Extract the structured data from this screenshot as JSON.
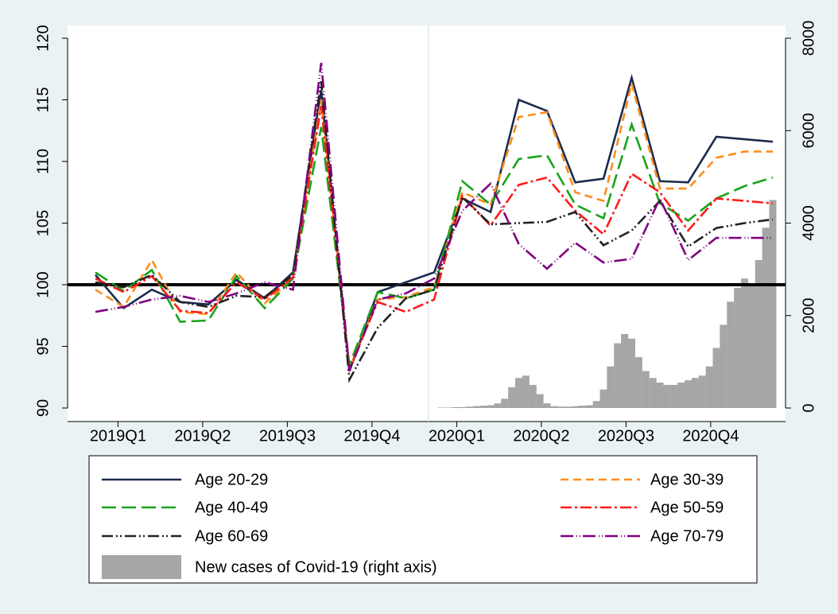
{
  "chart_data": {
    "type": "line",
    "x": [
      0,
      1,
      2,
      3,
      4,
      5,
      6,
      7,
      8,
      9,
      10,
      11,
      12,
      13,
      14,
      15,
      16,
      17,
      18,
      19,
      20,
      21,
      22,
      23,
      24
    ],
    "xlim": [
      -1,
      25.4
    ],
    "xticks": [
      {
        "value": 0.8,
        "label": "2019Q1"
      },
      {
        "value": 3.8,
        "label": "2019Q2"
      },
      {
        "value": 6.8,
        "label": "2019Q3"
      },
      {
        "value": 9.8,
        "label": "2019Q4"
      },
      {
        "value": 12.8,
        "label": "2020Q1"
      },
      {
        "value": 15.8,
        "label": "2020Q2"
      },
      {
        "value": 18.8,
        "label": "2020Q3"
      },
      {
        "value": 21.8,
        "label": "2020Q4"
      }
    ],
    "ylim": [
      90,
      120
    ],
    "yticks": [
      90,
      95,
      100,
      105,
      110,
      115,
      120
    ],
    "y2lim": [
      0,
      8000
    ],
    "y2ticks": [
      0,
      2000,
      4000,
      6000,
      8000
    ],
    "yline": 100,
    "xline": 11.8,
    "legend": "bottom",
    "series": [
      {
        "name": "Age 20-29",
        "color": "#1a2b4c",
        "dash": "none",
        "values": [
          100.8,
          98.1,
          99.6,
          98.6,
          98.4,
          100.4,
          98.9,
          101,
          115.8,
          93,
          99.4,
          100.2,
          101,
          107,
          105.9,
          115,
          114.1,
          108.3,
          108.6,
          116.8,
          108.4,
          108.3,
          112,
          111.8,
          111.6
        ]
      },
      {
        "name": "Age 30-39",
        "color": "#ff8c1a",
        "dash": "10,6",
        "values": [
          99.6,
          98.2,
          102,
          97.8,
          97.6,
          101,
          98.5,
          100.5,
          115,
          93.2,
          98.8,
          99,
          99.8,
          107.5,
          106.5,
          113.6,
          114,
          107.5,
          106.8,
          116.3,
          107.8,
          107.8,
          110.3,
          110.8,
          110.8
        ]
      },
      {
        "name": "Age 40-49",
        "color": "#1aa31a",
        "dash": "18,7",
        "values": [
          101,
          99.5,
          101.2,
          97,
          97.1,
          100.7,
          98.1,
          100.5,
          112.8,
          93.5,
          99.4,
          98.9,
          99.6,
          108.4,
          106.5,
          110.2,
          110.5,
          106.5,
          105.4,
          113,
          106.6,
          105.2,
          107,
          108,
          108.7
        ]
      },
      {
        "name": "Age 50-59",
        "color": "#ff1a1a",
        "dash": "14,4,3,4",
        "values": [
          100.5,
          99.4,
          100.7,
          97.9,
          97.7,
          100.2,
          98.8,
          100.6,
          114.5,
          93.2,
          98.6,
          97.8,
          98.8,
          107.2,
          104.8,
          108.1,
          108.7,
          106,
          104.1,
          109,
          107.5,
          104.4,
          107,
          106.8,
          106.6
        ]
      },
      {
        "name": "Age 60-69",
        "color": "#222222",
        "dash": "14,4,2,3,2,4",
        "values": [
          100.2,
          99.8,
          100.8,
          98.6,
          98.2,
          99.1,
          99,
          100.8,
          116.5,
          92.3,
          96.5,
          98.9,
          99.6,
          107.1,
          104.9,
          105,
          105.1,
          105.9,
          103.2,
          104.4,
          106.8,
          103.1,
          104.6,
          105,
          105.3
        ]
      },
      {
        "name": "Age 70-79",
        "color": "#800080",
        "dash": "16,4,1,3,1,3",
        "values": [
          97.8,
          98.2,
          98.8,
          99.1,
          98.6,
          99.3,
          100.2,
          99.6,
          118,
          93,
          98.8,
          99.3,
          100.5,
          106,
          108.2,
          103.3,
          101.3,
          103.4,
          101.8,
          102.1,
          107,
          102,
          103.8,
          103.8,
          103.8
        ]
      },
      {
        "name": "New cases of Covid-19 (right axis)",
        "type": "bar",
        "axis": "y2",
        "color": "#a6a6a6",
        "x": [
          12.25,
          12.5,
          12.75,
          13,
          13.25,
          13.5,
          13.75,
          14,
          14.25,
          14.5,
          14.75,
          15,
          15.25,
          15.5,
          15.75,
          16,
          16.25,
          16.5,
          16.75,
          17,
          17.25,
          17.5,
          17.75,
          18,
          18.25,
          18.5,
          18.75,
          19,
          19.25,
          19.5,
          19.75,
          20,
          20.25,
          20.5,
          20.75,
          21,
          21.25,
          21.5,
          21.75,
          22,
          22.25,
          22.5,
          22.75,
          23,
          23.25,
          23.5,
          23.75,
          24
        ],
        "values": [
          10,
          10,
          20,
          20,
          30,
          40,
          50,
          60,
          100,
          200,
          450,
          650,
          700,
          500,
          300,
          100,
          40,
          30,
          30,
          40,
          50,
          60,
          150,
          400,
          900,
          1400,
          1600,
          1500,
          1100,
          800,
          650,
          550,
          500,
          500,
          550,
          600,
          650,
          700,
          900,
          1300,
          1800,
          2300,
          2600,
          2800,
          2700,
          3200,
          3900,
          4500
        ]
      }
    ]
  }
}
